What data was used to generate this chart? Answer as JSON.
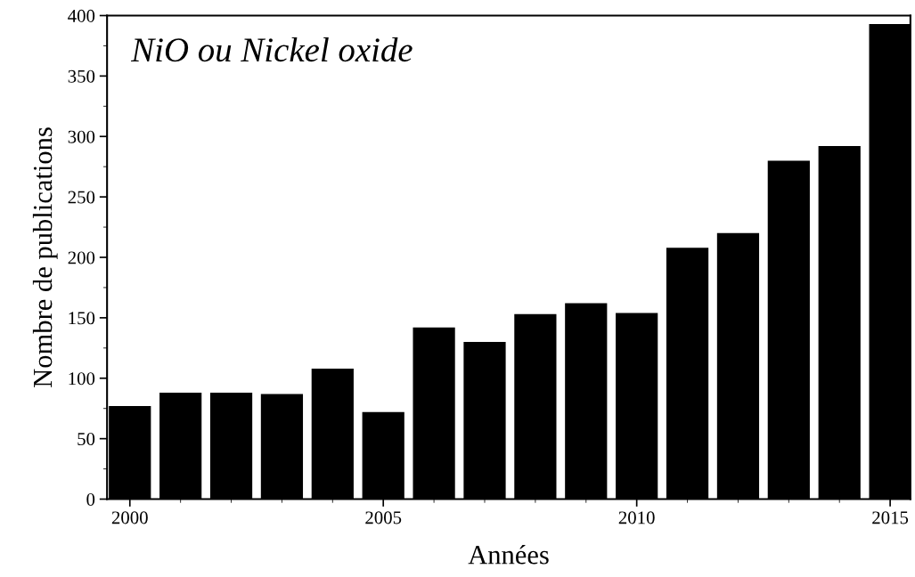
{
  "chart_data": {
    "type": "bar",
    "title": "NiO ou Nickel oxide",
    "xlabel": "Années",
    "ylabel": "Nombre de publications",
    "x": [
      2000,
      2001,
      2002,
      2003,
      2004,
      2005,
      2006,
      2007,
      2008,
      2009,
      2010,
      2011,
      2012,
      2013,
      2014,
      2015
    ],
    "values": [
      77,
      88,
      88,
      87,
      108,
      72,
      142,
      130,
      153,
      162,
      154,
      208,
      220,
      280,
      292,
      393
    ],
    "color": "#000000",
    "xlim": [
      1999.55,
      2015.4
    ],
    "xticks": [
      2000,
      2005,
      2010,
      2015
    ],
    "ylim": [
      0,
      400
    ],
    "yticks": [
      0,
      50,
      100,
      150,
      200,
      250,
      300,
      350,
      400
    ],
    "grid": false
  }
}
